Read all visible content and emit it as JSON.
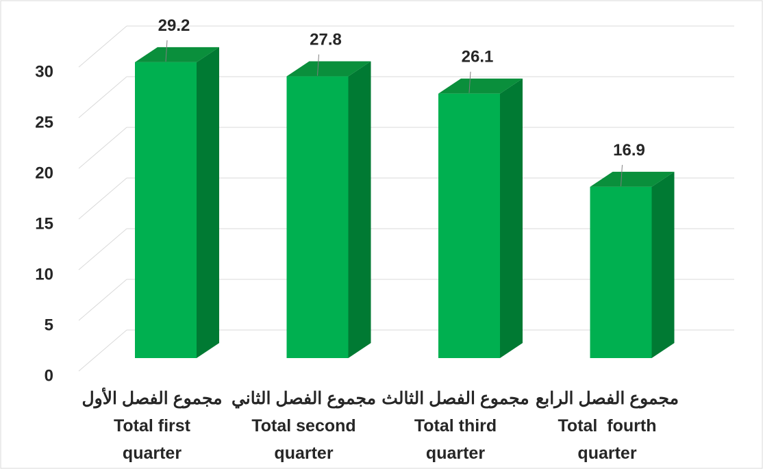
{
  "chart_data": {
    "type": "bar3d",
    "categories": [
      [
        "مجموع الفصل الأول",
        "Total first",
        "quarter"
      ],
      [
        "مجموع الفصل الثاني",
        "Total second",
        "quarter"
      ],
      [
        "مجموع الفصل الثالث",
        "Total third",
        "quarter"
      ],
      [
        "مجموع الفصل الرابع",
        "Total  fourth",
        "quarter"
      ]
    ],
    "values": [
      29.2,
      27.8,
      26.1,
      16.9
    ],
    "color": "#00b050",
    "ylim": [
      0,
      30
    ],
    "yticks": [
      0,
      5,
      10,
      15,
      20,
      25,
      30
    ],
    "grid": true
  }
}
